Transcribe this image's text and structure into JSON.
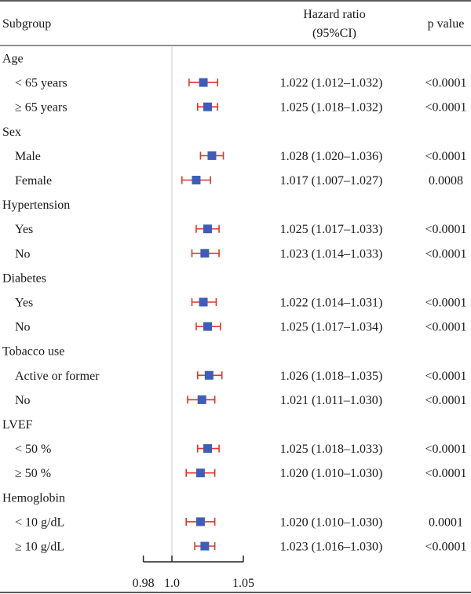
{
  "chart_data": {
    "type": "forest",
    "headers": {
      "subgroup": "Subgroup",
      "hr_line1": "Hazard ratio",
      "hr_line2": "(95%CI)",
      "p": "p value"
    },
    "reference_line": 1.0,
    "xlim": [
      0.98,
      1.05
    ],
    "x_ticks": [
      0.98,
      1.0,
      1.05
    ],
    "x_tick_labels": [
      "0.98",
      "1.0",
      "1.05"
    ],
    "rows": [
      {
        "label": "Age",
        "header": true
      },
      {
        "label": "< 65 years",
        "hr": 1.022,
        "lo": 1.012,
        "hi": 1.032,
        "text": "1.022 (1.012–1.032)",
        "p": "<0.0001"
      },
      {
        "label": "≥ 65 years",
        "hr": 1.025,
        "lo": 1.018,
        "hi": 1.032,
        "text": "1.025 (1.018–1.032)",
        "p": "<0.0001"
      },
      {
        "label": "Sex",
        "header": true
      },
      {
        "label": "Male",
        "hr": 1.028,
        "lo": 1.02,
        "hi": 1.036,
        "text": "1.028 (1.020–1.036)",
        "p": "<0.0001"
      },
      {
        "label": "Female",
        "hr": 1.017,
        "lo": 1.007,
        "hi": 1.027,
        "text": "1.017 (1.007–1.027)",
        "p": "0.0008"
      },
      {
        "label": "Hypertension",
        "header": true
      },
      {
        "label": "Yes",
        "hr": 1.025,
        "lo": 1.017,
        "hi": 1.033,
        "text": "1.025 (1.017–1.033)",
        "p": "<0.0001"
      },
      {
        "label": "No",
        "hr": 1.023,
        "lo": 1.014,
        "hi": 1.033,
        "text": "1.023 (1.014–1.033)",
        "p": "<0.0001"
      },
      {
        "label": "Diabetes",
        "header": true
      },
      {
        "label": "Yes",
        "hr": 1.022,
        "lo": 1.014,
        "hi": 1.031,
        "text": "1.022 (1.014–1.031)",
        "p": "<0.0001"
      },
      {
        "label": "No",
        "hr": 1.025,
        "lo": 1.017,
        "hi": 1.034,
        "text": "1.025 (1.017–1.034)",
        "p": "<0.0001"
      },
      {
        "label": "Tobacco use",
        "header": true
      },
      {
        "label": "Active or former",
        "hr": 1.026,
        "lo": 1.018,
        "hi": 1.035,
        "text": "1.026 (1.018–1.035)",
        "p": "<0.0001"
      },
      {
        "label": "No",
        "hr": 1.021,
        "lo": 1.011,
        "hi": 1.03,
        "text": "1.021 (1.011–1.030)",
        "p": "<0.0001"
      },
      {
        "label": "LVEF",
        "header": true
      },
      {
        "label": "< 50 %",
        "hr": 1.025,
        "lo": 1.018,
        "hi": 1.033,
        "text": "1.025 (1.018–1.033)",
        "p": "<0.0001"
      },
      {
        "label": "≥ 50 %",
        "hr": 1.02,
        "lo": 1.01,
        "hi": 1.03,
        "text": "1.020 (1.010–1.030)",
        "p": "<0.0001"
      },
      {
        "label": "Hemoglobin",
        "header": true
      },
      {
        "label": "< 10 g/dL",
        "hr": 1.02,
        "lo": 1.01,
        "hi": 1.03,
        "text": "1.020 (1.010–1.030)",
        "p": "0.0001"
      },
      {
        "label": "≥ 10 g/dL",
        "hr": 1.023,
        "lo": 1.016,
        "hi": 1.03,
        "text": "1.023 (1.016–1.030)",
        "p": "<0.0001"
      }
    ],
    "colors": {
      "point": "#3f5cb8",
      "ci": "#e0352b",
      "reference_line": "#c8c8c8",
      "rule": "#222222"
    }
  }
}
